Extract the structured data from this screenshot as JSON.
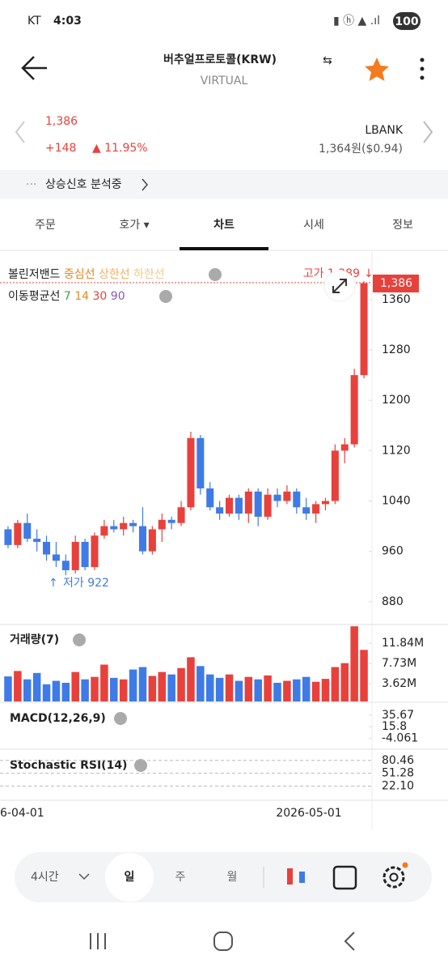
{
  "status_bar": {
    "carrier": "KT",
    "time": "4:03",
    "battery": "100"
  },
  "header": {
    "title": "버추얼프로토콜(KRW)",
    "subtitle": "VIRTUAL"
  },
  "price": {
    "current": "1,386",
    "change": "+148",
    "change_pct": "▲ 11.95%",
    "exchange": "LBANK",
    "exchange_price": "1,364원($0.94)"
  },
  "banner": {
    "text": "상승신호 분석중"
  },
  "tabs": [
    "주문",
    "호가 ▾",
    "차트",
    "시세",
    "정보"
  ],
  "chart_data": {
    "type": "candlestick",
    "bollinger_legend": {
      "title": "볼린저밴드",
      "middle": "중심선",
      "upper": "상한선",
      "lower": "하한선"
    },
    "ma_legend": {
      "title": "이동평균선",
      "periods": [
        "7",
        "14",
        "30",
        "90"
      ]
    },
    "high_label": "고가 1,389",
    "low_label": "저가 922",
    "price_tag": "1,386",
    "up_color": "#e8413c",
    "down_color": "#3f7be6",
    "open": [
      995,
      970,
      1005,
      980,
      975,
      955,
      945,
      930,
      975,
      935,
      985,
      1000,
      995,
      1005,
      1000,
      960,
      995,
      1010,
      1005,
      1030,
      1140,
      1060,
      1030,
      1020,
      1045,
      1020,
      1055,
      1015,
      1050,
      1040,
      1055,
      1030,
      1020,
      1035,
      1040,
      1120,
      1130,
      1240
    ],
    "high": [
      1000,
      1010,
      1020,
      995,
      985,
      975,
      955,
      985,
      980,
      990,
      1010,
      1010,
      1015,
      1010,
      1030,
      1000,
      1020,
      1015,
      1040,
      1150,
      1145,
      1070,
      1040,
      1050,
      1050,
      1060,
      1060,
      1060,
      1060,
      1065,
      1060,
      1045,
      1040,
      1045,
      1130,
      1140,
      1250,
      1389
    ],
    "low": [
      965,
      965,
      975,
      960,
      945,
      935,
      922,
      925,
      930,
      930,
      980,
      990,
      985,
      990,
      955,
      955,
      975,
      995,
      1000,
      1025,
      1050,
      1025,
      1010,
      1015,
      1010,
      1005,
      1000,
      1010,
      1030,
      1035,
      1020,
      1010,
      1005,
      1025,
      1035,
      1100,
      1125,
      1235
    ],
    "close": [
      970,
      1005,
      980,
      975,
      955,
      945,
      930,
      975,
      935,
      985,
      1000,
      995,
      1005,
      1000,
      960,
      995,
      1010,
      1005,
      1030,
      1140,
      1060,
      1030,
      1020,
      1045,
      1020,
      1055,
      1015,
      1050,
      1040,
      1055,
      1030,
      1020,
      1035,
      1040,
      1120,
      1130,
      1240,
      1386
    ],
    "ylim": [
      845,
      1392
    ],
    "yticks": [
      880,
      960,
      1040,
      1120,
      1200,
      1280,
      1360
    ],
    "volume": {
      "title": "거래량(7)",
      "values": [
        5.1,
        6.2,
        4.5,
        5.8,
        3.5,
        4.2,
        3.8,
        6.0,
        4.5,
        5.0,
        7.5,
        4.8,
        4.5,
        6.5,
        7.0,
        5.2,
        6.0,
        5.5,
        6.8,
        9.0,
        7.2,
        5.5,
        4.8,
        5.5,
        4.2,
        5.0,
        4.5,
        5.3,
        3.8,
        4.2,
        4.5,
        5.0,
        4.0,
        4.6,
        7.0,
        7.8,
        15.3,
        10.5
      ],
      "ylim": [
        0,
        15.5
      ],
      "yticks": [
        {
          "value": 3.62,
          "label": "3.62M"
        },
        {
          "value": 7.73,
          "label": "7.73M"
        },
        {
          "value": 11.84,
          "label": "11.84M"
        }
      ]
    },
    "macd": {
      "title": "MACD(12,26,9)",
      "ylim": [
        -21,
        56
      ],
      "yticks": [
        -4.061,
        15.8,
        35.67
      ]
    },
    "stoch_rsi": {
      "title": "Stochastic RSI(14)",
      "ylim": [
        -10,
        104
      ],
      "yticks": [
        {
          "value": 22.1,
          "label": "22.10"
        },
        51.28,
        80.46
      ]
    },
    "x_labels": [
      "6-04-01",
      "2026-05-01"
    ]
  },
  "toolbar": {
    "interval": "4시간",
    "day": "일",
    "week": "주",
    "month": "월"
  }
}
